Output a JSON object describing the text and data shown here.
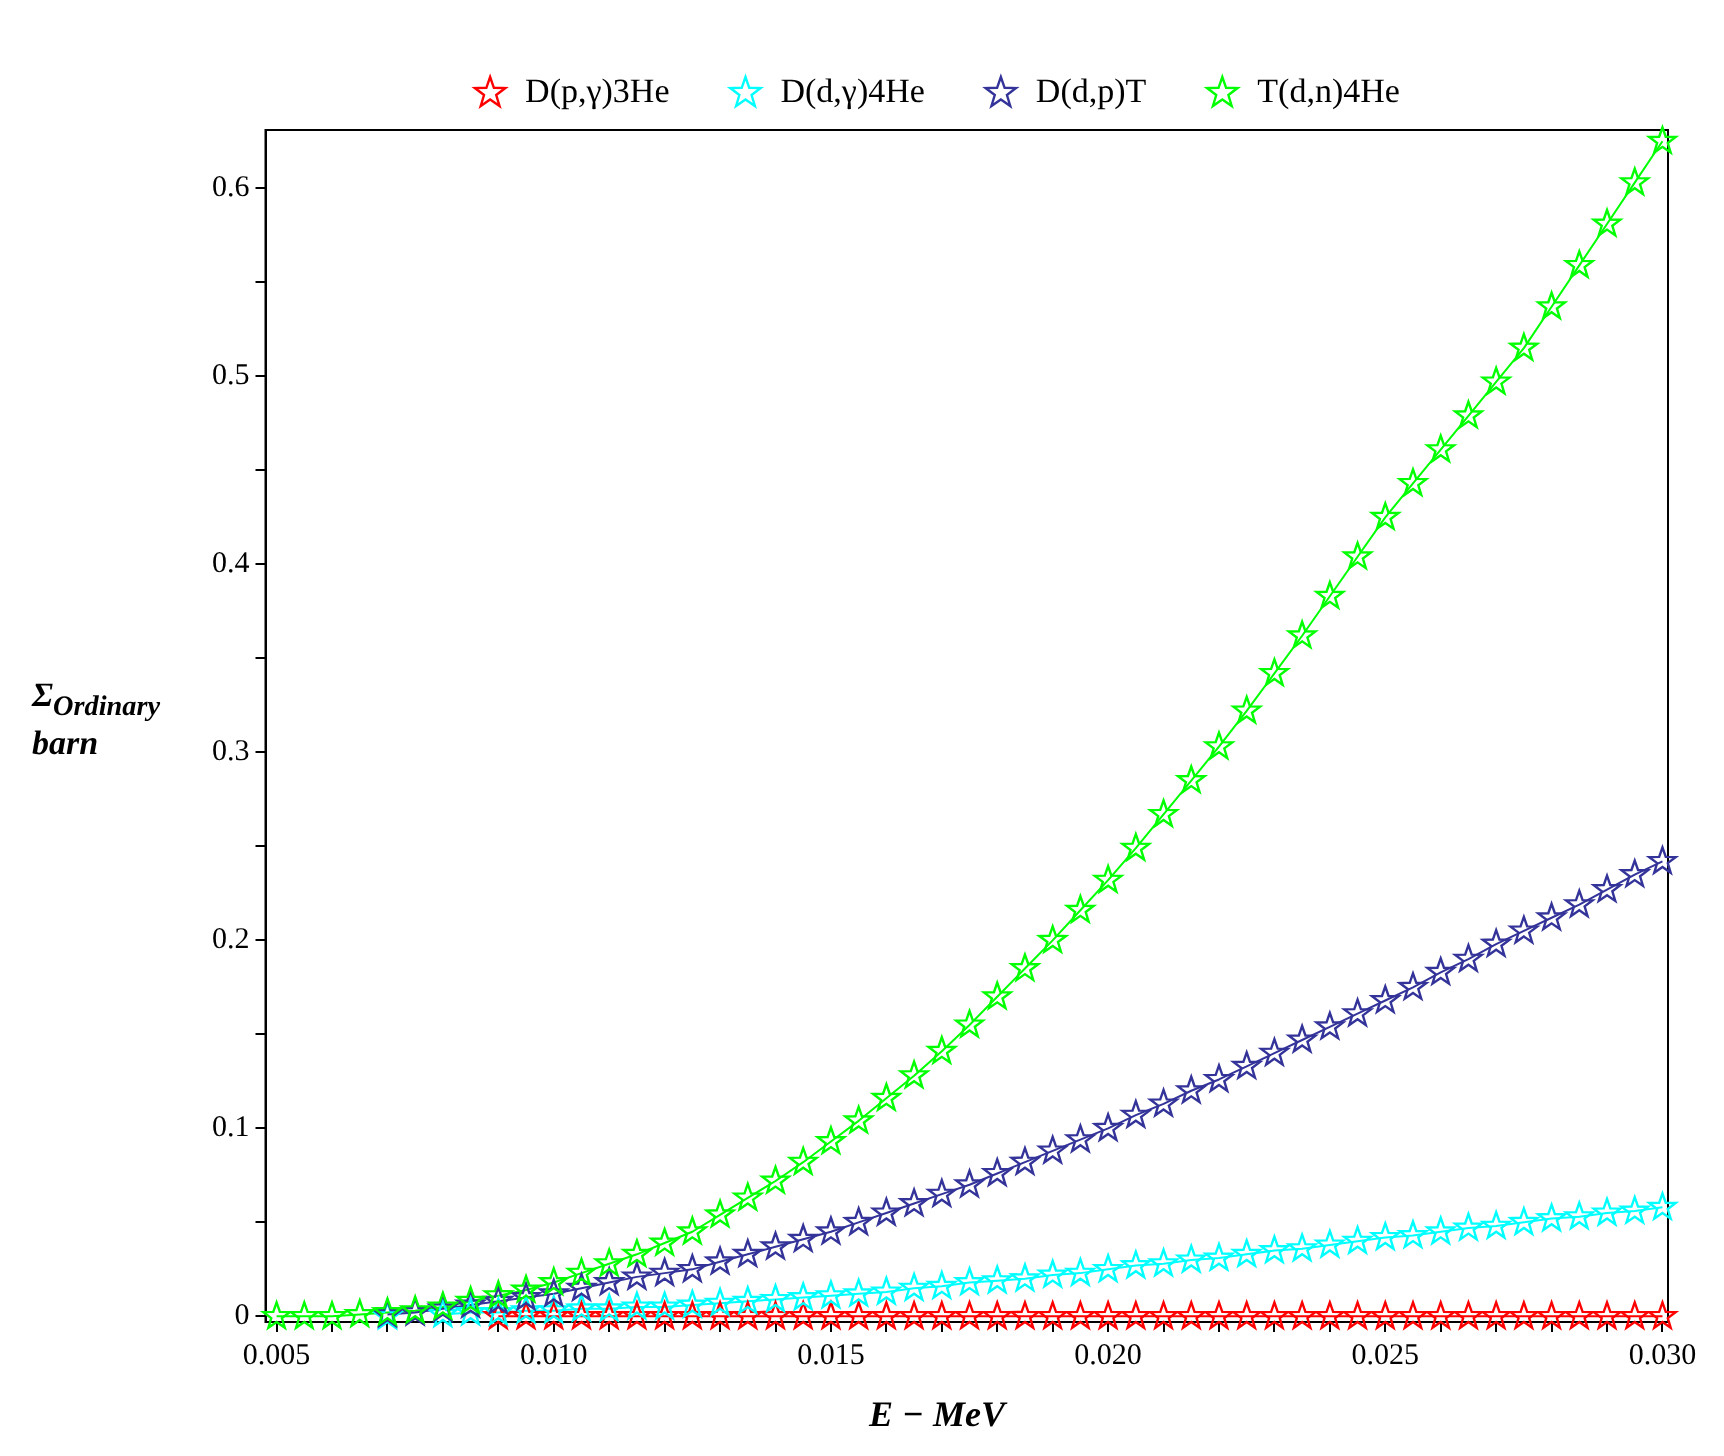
{
  "chart_data": {
    "type": "line",
    "xlabel": "E − MeV",
    "ylabel": "Σ$_{Ordinary}$ barn",
    "x": [
      0.005,
      0.0055,
      0.006,
      0.0065,
      0.007,
      0.0075,
      0.008,
      0.0085,
      0.009,
      0.0095,
      0.01,
      0.0105,
      0.011,
      0.0115,
      0.012,
      0.0125,
      0.013,
      0.0135,
      0.014,
      0.0145,
      0.015,
      0.0155,
      0.016,
      0.0165,
      0.017,
      0.0175,
      0.018,
      0.0185,
      0.019,
      0.0195,
      0.02,
      0.0205,
      0.021,
      0.0215,
      0.022,
      0.0225,
      0.023,
      0.0235,
      0.024,
      0.0245,
      0.025,
      0.0255,
      0.026,
      0.0265,
      0.027,
      0.0275,
      0.028,
      0.0285,
      0.029,
      0.0295,
      0.03
    ],
    "series": [
      {
        "name": "D(p,γ)3He",
        "color": "#ff0000",
        "values": [
          null,
          null,
          null,
          null,
          null,
          null,
          null,
          null,
          0,
          0,
          0,
          0,
          0,
          0,
          0,
          0,
          0,
          0,
          0,
          0,
          0,
          0,
          0,
          0,
          0,
          0,
          0,
          0,
          0,
          0,
          0,
          0,
          0,
          0,
          0,
          0,
          0,
          0,
          0,
          0,
          0,
          0,
          0,
          0,
          0,
          0,
          0,
          0,
          0,
          0,
          0
        ]
      },
      {
        "name": "D(d,γ)4He",
        "color": "#00ffff",
        "values": [
          null,
          null,
          null,
          null,
          0,
          null,
          0.001,
          0.002,
          0.002,
          0.003,
          0.003,
          0.004,
          0.004,
          0.005,
          0.005,
          0.006,
          0.007,
          0.008,
          0.009,
          0.01,
          0.011,
          0.012,
          0.013,
          0.015,
          0.016,
          0.018,
          0.019,
          0.02,
          0.022,
          0.023,
          0.025,
          0.027,
          0.028,
          0.03,
          0.031,
          0.033,
          0.035,
          0.036,
          0.038,
          0.04,
          0.042,
          0.043,
          0.045,
          0.047,
          0.048,
          0.05,
          0.052,
          0.053,
          0.055,
          0.056,
          0.058
        ]
      },
      {
        "name": "D(d,p)T",
        "color": "#333399",
        "values": [
          null,
          null,
          null,
          null,
          0.001,
          0.002,
          0.004,
          0.006,
          0.008,
          0.01,
          0.012,
          0.015,
          0.018,
          0.021,
          0.023,
          0.025,
          0.029,
          0.033,
          0.037,
          0.041,
          0.045,
          0.05,
          0.055,
          0.06,
          0.065,
          0.07,
          0.076,
          0.082,
          0.088,
          0.094,
          0.1,
          0.107,
          0.113,
          0.12,
          0.126,
          0.133,
          0.14,
          0.147,
          0.154,
          0.161,
          0.168,
          0.175,
          0.183,
          0.19,
          0.198,
          0.205,
          0.212,
          0.219,
          0.227,
          0.235,
          0.242
        ]
      },
      {
        "name": "T(d,n)4He",
        "color": "#00ff00",
        "values": [
          0,
          0,
          0,
          0.001,
          0.002,
          0.003,
          0.005,
          0.008,
          0.011,
          0.014,
          0.018,
          0.023,
          0.028,
          0.033,
          0.039,
          0.045,
          0.054,
          0.063,
          0.072,
          0.082,
          0.093,
          0.104,
          0.116,
          0.128,
          0.141,
          0.155,
          0.17,
          0.185,
          0.2,
          0.216,
          0.232,
          0.249,
          0.267,
          0.285,
          0.303,
          0.322,
          0.342,
          0.362,
          0.383,
          0.404,
          0.425,
          0.443,
          0.461,
          0.479,
          0.497,
          0.515,
          0.537,
          0.559,
          0.581,
          0.603,
          0.625
        ]
      }
    ],
    "xlim": [
      0.0048,
      0.0301
    ],
    "xticks": [
      {
        "value": 0.005,
        "label": "0.005"
      },
      {
        "value": 0.006,
        "label": null
      },
      {
        "value": 0.007,
        "label": null
      },
      {
        "value": 0.008,
        "label": null
      },
      {
        "value": 0.009,
        "label": null
      },
      {
        "value": 0.01,
        "label": "0.010"
      },
      {
        "value": 0.011,
        "label": null
      },
      {
        "value": 0.012,
        "label": null
      },
      {
        "value": 0.013,
        "label": null
      },
      {
        "value": 0.014,
        "label": null
      },
      {
        "value": 0.015,
        "label": "0.015"
      },
      {
        "value": 0.016,
        "label": null
      },
      {
        "value": 0.017,
        "label": null
      },
      {
        "value": 0.018,
        "label": null
      },
      {
        "value": 0.019,
        "label": null
      },
      {
        "value": 0.02,
        "label": "0.020"
      },
      {
        "value": 0.021,
        "label": null
      },
      {
        "value": 0.022,
        "label": null
      },
      {
        "value": 0.023,
        "label": null
      },
      {
        "value": 0.024,
        "label": null
      },
      {
        "value": 0.025,
        "label": "0.025"
      },
      {
        "value": 0.026,
        "label": null
      },
      {
        "value": 0.027,
        "label": null
      },
      {
        "value": 0.028,
        "label": null
      },
      {
        "value": 0.029,
        "label": null
      },
      {
        "value": 0.03,
        "label": "0.030"
      }
    ],
    "ylim": [
      -0.003,
      0.631
    ],
    "yticks": [
      0,
      {
        "value": 0.05,
        "label": null
      },
      0.1,
      {
        "value": 0.15,
        "label": null
      },
      0.2,
      {
        "value": 0.25,
        "label": null
      },
      0.3,
      {
        "value": 0.35,
        "label": null
      },
      0.4,
      {
        "value": 0.45,
        "label": null
      },
      0.5,
      {
        "value": 0.55,
        "label": null
      },
      0.6
    ],
    "legend": "top",
    "marker": "star",
    "line_style": "solid"
  }
}
